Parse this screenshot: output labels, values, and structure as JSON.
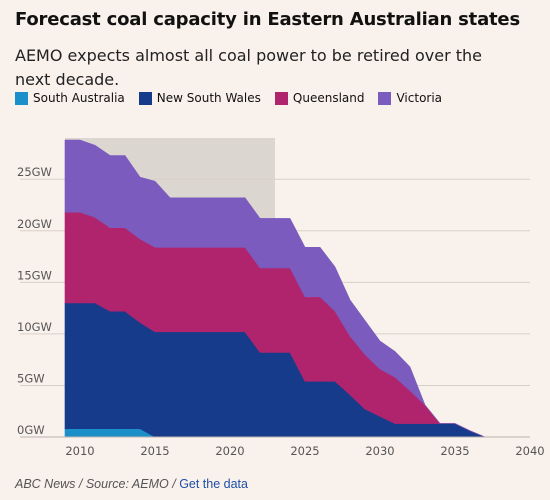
{
  "title": "Forecast coal capacity in Eastern Australian states",
  "subtitle": "AEMO expects almost all coal power to be retired over the next decade.",
  "footer": {
    "source": "ABC News / Source: AEMO /",
    "link": "Get the data"
  },
  "chart_data": {
    "type": "area",
    "stacked": true,
    "title": "Forecast coal capacity in Eastern Australian states",
    "xlabel": "",
    "ylabel": "",
    "xlim": [
      2009,
      2040
    ],
    "ylim": [
      0,
      29
    ],
    "x_ticks": [
      {
        "value": 2010,
        "label": "2010"
      },
      {
        "value": 2015,
        "label": "2015"
      },
      {
        "value": 2020,
        "label": "2020"
      },
      {
        "value": 2025,
        "label": "2025"
      },
      {
        "value": 2030,
        "label": "2030"
      },
      {
        "value": 2035,
        "label": "2035"
      },
      {
        "value": 2040,
        "label": "2040"
      }
    ],
    "y_ticks": [
      {
        "value": 0,
        "label": "0GW"
      },
      {
        "value": 5,
        "label": "5GW"
      },
      {
        "value": 10,
        "label": "10GW"
      },
      {
        "value": 15,
        "label": "15GW"
      },
      {
        "value": 20,
        "label": "20GW"
      },
      {
        "value": 25,
        "label": "25GW"
      }
    ],
    "grid": true,
    "legend_position": "top-left",
    "highlight_range": [
      2009,
      2023
    ],
    "x": [
      2009,
      2010,
      2011,
      2012,
      2013,
      2014,
      2015,
      2016,
      2017,
      2018,
      2019,
      2020,
      2021,
      2022,
      2023,
      2024,
      2025,
      2026,
      2027,
      2028,
      2029,
      2030,
      2031,
      2032,
      2033,
      2034,
      2035,
      2036,
      2037,
      2038,
      2039,
      2040
    ],
    "series": [
      {
        "name": "South Australia",
        "color": "#1a8fc9",
        "values": [
          0.8,
          0.8,
          0.8,
          0.8,
          0.8,
          0.8,
          0,
          0,
          0,
          0,
          0,
          0,
          0,
          0,
          0,
          0,
          0,
          0,
          0,
          0,
          0,
          0,
          0,
          0,
          0,
          0,
          0,
          0,
          0,
          0,
          0,
          0
        ]
      },
      {
        "name": "New South Wales",
        "color": "#163b8a",
        "values": [
          12.2,
          12.2,
          12.2,
          11.4,
          11.4,
          10.3,
          10.2,
          10.2,
          10.2,
          10.2,
          10.2,
          10.2,
          10.2,
          8.2,
          8.2,
          8.2,
          5.4,
          5.4,
          5.4,
          4.1,
          2.7,
          2.0,
          1.3,
          1.3,
          1.3,
          1.3,
          1.3,
          0.6,
          0,
          0,
          0,
          0
        ]
      },
      {
        "name": "Queensland",
        "color": "#b0246e",
        "values": [
          8.8,
          8.8,
          8.3,
          8.1,
          8.1,
          8.1,
          8.2,
          8.2,
          8.2,
          8.2,
          8.2,
          8.2,
          8.2,
          8.2,
          8.2,
          8.2,
          8.2,
          8.2,
          6.8,
          5.7,
          5.3,
          4.6,
          4.5,
          3.2,
          1.8,
          0,
          0,
          0,
          0,
          0,
          0,
          0
        ]
      },
      {
        "name": "Victoria",
        "color": "#7b5bbe",
        "values": [
          7.0,
          7.0,
          7.0,
          7.0,
          7.0,
          6.0,
          6.4,
          4.8,
          4.8,
          4.8,
          4.8,
          4.8,
          4.8,
          4.8,
          4.8,
          4.8,
          4.8,
          4.8,
          4.3,
          3.5,
          3.3,
          2.7,
          2.5,
          2.3,
          0,
          0,
          0,
          0,
          0,
          0,
          0,
          0
        ]
      }
    ]
  }
}
